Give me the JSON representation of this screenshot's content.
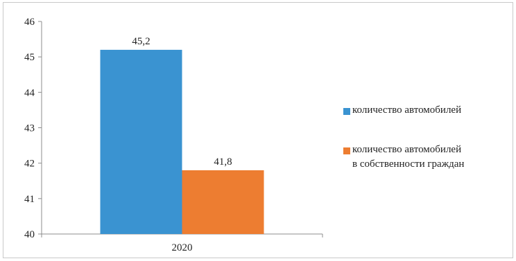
{
  "chart_data": {
    "type": "bar",
    "categories": [
      "2020"
    ],
    "series": [
      {
        "name": "количество автомобилей",
        "values": [
          45.2
        ],
        "labels": [
          "45,2"
        ],
        "color": "#3a93d1"
      },
      {
        "name": "количество автомобилей\nв собственности граждан",
        "values": [
          41.8
        ],
        "labels": [
          "41,8"
        ],
        "color": "#ed7d31"
      }
    ],
    "ylim": [
      40,
      46
    ],
    "yticks": [
      "40",
      "41",
      "42",
      "43",
      "44",
      "45",
      "46"
    ],
    "grid": false,
    "legend": "right",
    "title": "",
    "xlabel": "",
    "ylabel": ""
  }
}
